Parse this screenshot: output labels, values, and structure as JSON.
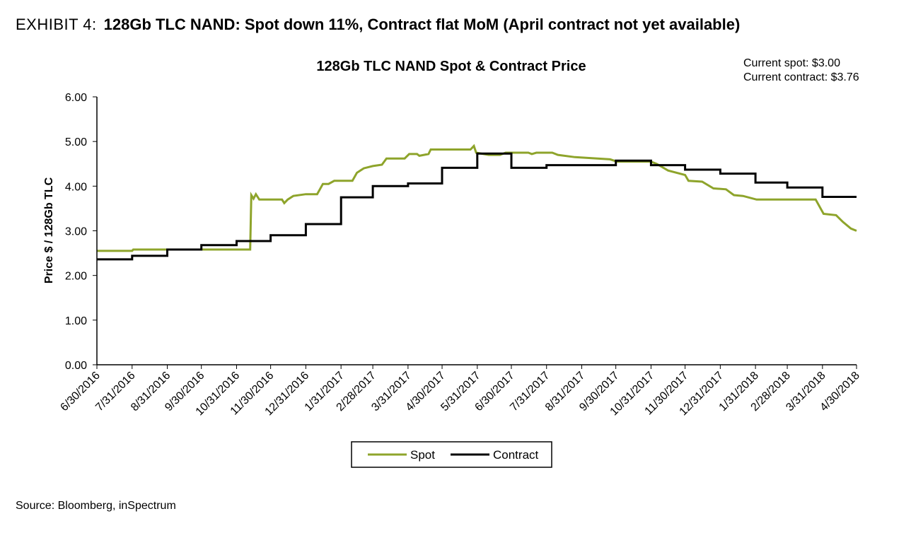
{
  "header": {
    "exhibit_label": "EXHIBIT 4:",
    "headline": "128Gb TLC NAND: Spot down 11%, Contract flat MoM (April contract not yet available)"
  },
  "annotation": {
    "current_spot": "Current spot: $3.00",
    "current_contract": "Current contract: $3.76"
  },
  "footer": {
    "source": "Source: Bloomberg, inSpectrum"
  },
  "chart_data": {
    "type": "line",
    "title": "128Gb TLC NAND  Spot & Contract Price",
    "xlabel": "",
    "ylabel": "Price $ / 128Gb TLC",
    "ylim": [
      0,
      6
    ],
    "yticks": [
      "0.00",
      "1.00",
      "2.00",
      "3.00",
      "4.00",
      "5.00",
      "6.00"
    ],
    "x_tick_labels": [
      "6/30/2016",
      "7/31/2016",
      "8/31/2016",
      "9/30/2016",
      "10/31/2016",
      "11/30/2016",
      "12/31/2016",
      "1/31/2017",
      "2/28/2017",
      "3/31/2017",
      "4/30/2017",
      "5/31/2017",
      "6/30/2017",
      "7/31/2017",
      "8/31/2017",
      "9/30/2017",
      "10/31/2017",
      "11/30/2017",
      "12/31/2017",
      "1/31/2018",
      "2/28/2018",
      "3/31/2018",
      "4/30/2018"
    ],
    "grid": false,
    "legend_position": "bottom-center",
    "colors": {
      "spot": "#8ea42b",
      "contract": "#000000"
    },
    "series": [
      {
        "name": "Spot",
        "points": [
          [
            "2016-06-30",
            2.55
          ],
          [
            "2016-07-31",
            2.55
          ],
          [
            "2016-08-01",
            2.58
          ],
          [
            "2016-11-12",
            2.58
          ],
          [
            "2016-11-13",
            3.8
          ],
          [
            "2016-11-15",
            3.72
          ],
          [
            "2016-11-17",
            3.82
          ],
          [
            "2016-11-20",
            3.7
          ],
          [
            "2016-12-10",
            3.7
          ],
          [
            "2016-12-12",
            3.62
          ],
          [
            "2016-12-15",
            3.7
          ],
          [
            "2016-12-20",
            3.78
          ],
          [
            "2016-12-31",
            3.82
          ],
          [
            "2017-01-10",
            3.82
          ],
          [
            "2017-01-15",
            4.05
          ],
          [
            "2017-01-20",
            4.05
          ],
          [
            "2017-01-25",
            4.12
          ],
          [
            "2017-02-10",
            4.12
          ],
          [
            "2017-02-14",
            4.3
          ],
          [
            "2017-02-20",
            4.4
          ],
          [
            "2017-02-28",
            4.45
          ],
          [
            "2017-03-08",
            4.48
          ],
          [
            "2017-03-12",
            4.62
          ],
          [
            "2017-03-28",
            4.62
          ],
          [
            "2017-04-01",
            4.72
          ],
          [
            "2017-04-08",
            4.72
          ],
          [
            "2017-04-10",
            4.68
          ],
          [
            "2017-04-18",
            4.72
          ],
          [
            "2017-04-20",
            4.82
          ],
          [
            "2017-05-25",
            4.82
          ],
          [
            "2017-05-28",
            4.9
          ],
          [
            "2017-05-30",
            4.75
          ],
          [
            "2017-06-10",
            4.7
          ],
          [
            "2017-06-20",
            4.7
          ],
          [
            "2017-06-25",
            4.75
          ],
          [
            "2017-07-15",
            4.75
          ],
          [
            "2017-07-18",
            4.72
          ],
          [
            "2017-07-22",
            4.75
          ],
          [
            "2017-08-05",
            4.75
          ],
          [
            "2017-08-10",
            4.7
          ],
          [
            "2017-08-25",
            4.65
          ],
          [
            "2017-09-25",
            4.6
          ],
          [
            "2017-10-01",
            4.55
          ],
          [
            "2017-10-31",
            4.55
          ],
          [
            "2017-11-05",
            4.5
          ],
          [
            "2017-11-15",
            4.35
          ],
          [
            "2017-11-30",
            4.25
          ],
          [
            "2017-12-03",
            4.12
          ],
          [
            "2017-12-15",
            4.1
          ],
          [
            "2017-12-25",
            3.95
          ],
          [
            "2018-01-05",
            3.93
          ],
          [
            "2018-01-12",
            3.8
          ],
          [
            "2018-01-20",
            3.78
          ],
          [
            "2018-02-01",
            3.7
          ],
          [
            "2018-03-25",
            3.7
          ],
          [
            "2018-04-01",
            3.38
          ],
          [
            "2018-04-12",
            3.35
          ],
          [
            "2018-04-18",
            3.2
          ],
          [
            "2018-04-25",
            3.05
          ],
          [
            "2018-04-30",
            3.0
          ]
        ]
      },
      {
        "name": "Contract",
        "points": [
          [
            "2016-06-30",
            2.36
          ],
          [
            "2016-07-31",
            2.36
          ],
          [
            "2016-07-31",
            2.44
          ],
          [
            "2016-08-31",
            2.44
          ],
          [
            "2016-08-31",
            2.58
          ],
          [
            "2016-09-30",
            2.58
          ],
          [
            "2016-09-30",
            2.68
          ],
          [
            "2016-10-31",
            2.68
          ],
          [
            "2016-10-31",
            2.77
          ],
          [
            "2016-11-30",
            2.77
          ],
          [
            "2016-11-30",
            2.9
          ],
          [
            "2016-12-31",
            2.9
          ],
          [
            "2016-12-31",
            3.15
          ],
          [
            "2017-01-31",
            3.15
          ],
          [
            "2017-01-31",
            3.75
          ],
          [
            "2017-02-28",
            3.75
          ],
          [
            "2017-02-28",
            4.0
          ],
          [
            "2017-03-31",
            4.0
          ],
          [
            "2017-03-31",
            4.06
          ],
          [
            "2017-04-30",
            4.06
          ],
          [
            "2017-04-30",
            4.41
          ],
          [
            "2017-05-31",
            4.41
          ],
          [
            "2017-05-31",
            4.73
          ],
          [
            "2017-06-30",
            4.73
          ],
          [
            "2017-06-30",
            4.41
          ],
          [
            "2017-07-31",
            4.41
          ],
          [
            "2017-07-31",
            4.47
          ],
          [
            "2017-09-30",
            4.47
          ],
          [
            "2017-09-30",
            4.57
          ],
          [
            "2017-10-31",
            4.57
          ],
          [
            "2017-10-31",
            4.47
          ],
          [
            "2017-11-30",
            4.47
          ],
          [
            "2017-11-30",
            4.37
          ],
          [
            "2017-12-31",
            4.37
          ],
          [
            "2017-12-31",
            4.28
          ],
          [
            "2018-01-31",
            4.28
          ],
          [
            "2018-01-31",
            4.08
          ],
          [
            "2018-02-28",
            4.08
          ],
          [
            "2018-02-28",
            3.97
          ],
          [
            "2018-03-31",
            3.97
          ],
          [
            "2018-03-31",
            3.76
          ],
          [
            "2018-04-30",
            3.76
          ]
        ]
      }
    ]
  }
}
